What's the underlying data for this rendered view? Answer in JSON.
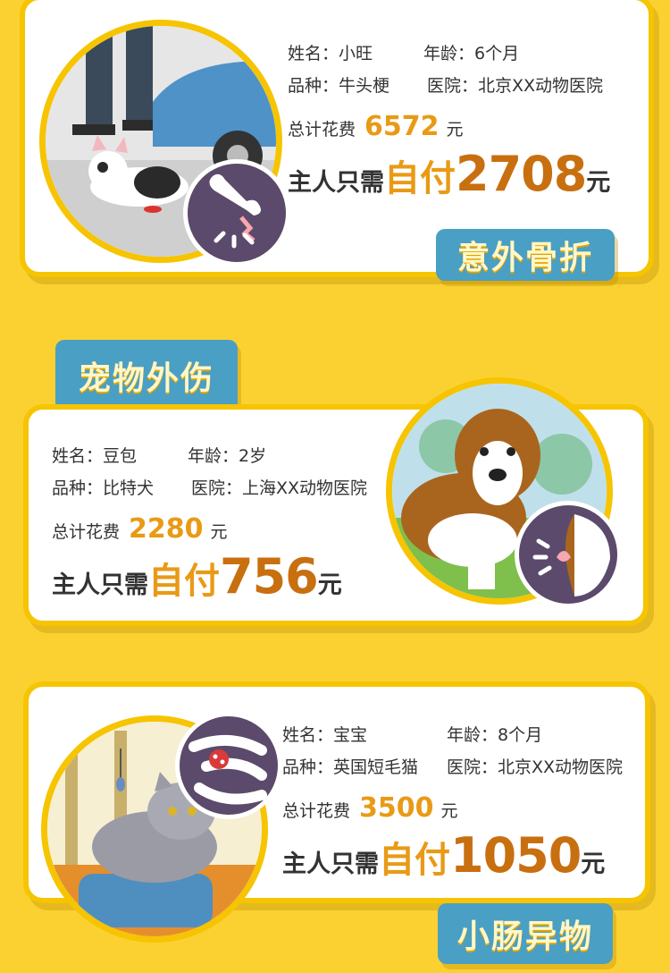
{
  "cards": [
    {
      "name_label": "姓名：",
      "name": "小旺",
      "age_label": "年龄：",
      "age": "6个月",
      "breed_label": "品种：",
      "breed": "牛头梗",
      "hospital_label": "医院：",
      "hospital": "北京XX动物医院",
      "total_label": "总计花费",
      "total": "6572",
      "total_unit": "元",
      "pay_prefix": "主人只需",
      "pay_word": "自付",
      "pay_amount": "2708",
      "pay_unit": "元",
      "category": "意外骨折"
    },
    {
      "name_label": "姓名：",
      "name": "豆包",
      "age_label": "年龄：",
      "age": "2岁",
      "breed_label": "品种：",
      "breed": "比特犬",
      "hospital_label": "医院：",
      "hospital": "上海XX动物医院",
      "total_label": "总计花费",
      "total": "2280",
      "total_unit": "元",
      "pay_prefix": "主人只需",
      "pay_word": "自付",
      "pay_amount": "756",
      "pay_unit": "元",
      "category": "宠物外伤"
    },
    {
      "name_label": "姓名：",
      "name": "宝宝",
      "age_label": "年龄：",
      "age": "8个月",
      "breed_label": "品种：",
      "breed": "英国短毛猫",
      "hospital_label": "医院：",
      "hospital": "北京XX动物医院",
      "total_label": "总计花费",
      "total": "3500",
      "total_unit": "元",
      "pay_prefix": "主人只需",
      "pay_word": "自付",
      "pay_amount": "1050",
      "pay_unit": "元",
      "category": "小肠异物"
    }
  ],
  "colors": {
    "background": "#fbd132",
    "accent": "#e99a15",
    "tab": "#4a9fc4"
  },
  "icons": [
    "broken-bone-icon",
    "wound-icon",
    "intestine-icon"
  ]
}
